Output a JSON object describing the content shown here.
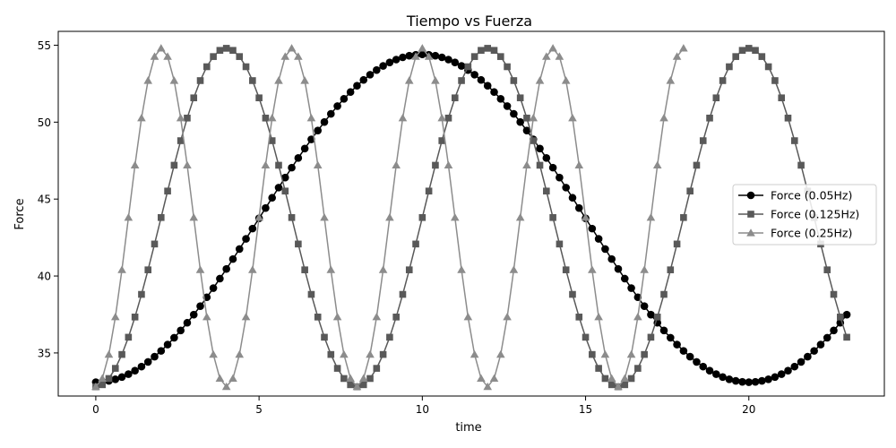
{
  "chart_data": {
    "type": "line",
    "title": "Tiempo vs Fuerza",
    "xlabel": "time",
    "ylabel": "Force",
    "xlim": [
      -1.15,
      24.15
    ],
    "ylim": [
      32.2,
      55.9
    ],
    "x_ticks": [
      0,
      5,
      10,
      15,
      20
    ],
    "y_ticks": [
      35,
      40,
      45,
      50,
      55
    ],
    "grid": false,
    "legend_position": "center-right",
    "model": {
      "x_start": 0,
      "x_step": 0.2,
      "count": 116,
      "note": "sampled every 0.2 time units; values follow a sinusoid between the observed min and max"
    },
    "series": [
      {
        "name": "Force (0.05Hz)",
        "color": "#000000",
        "marker": "circle",
        "frequency_hz": 0.05,
        "min": 33.1,
        "max": 54.4,
        "phase_min_at": 0
      },
      {
        "name": "Force (0.125Hz)",
        "color": "#595959",
        "marker": "square",
        "frequency_hz": 0.125,
        "min": 32.8,
        "max": 54.8,
        "phase_min_at": 0
      },
      {
        "name": "Force (0.25Hz)",
        "color": "#8c8c8c",
        "marker": "triangle",
        "frequency_hz": 0.25,
        "min": 32.8,
        "max": 54.8,
        "phase_min_at": 0,
        "x_end": 18
      }
    ]
  }
}
